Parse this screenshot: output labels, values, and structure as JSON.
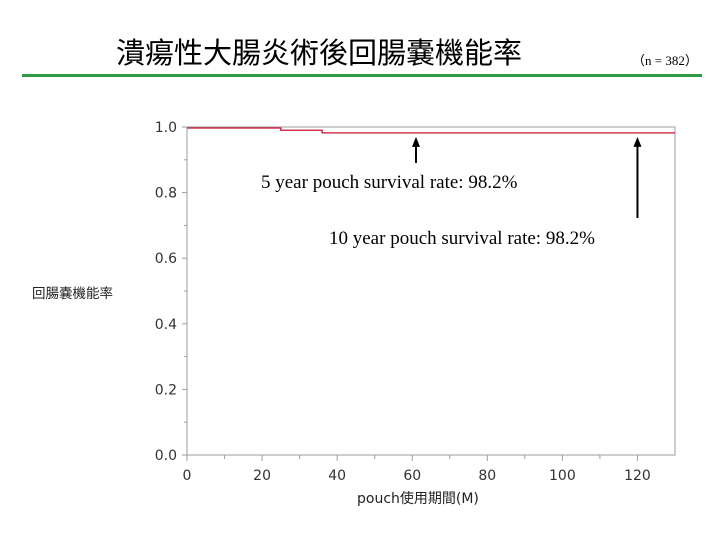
{
  "slide": {
    "title": "潰瘍性大腸炎術後回腸嚢機能率",
    "sample_size": "（n = 382）",
    "rule_color": "#2e9a45"
  },
  "annotations": {
    "five_year": "5 year pouch survival rate: 98.2%",
    "ten_year": "10 year pouch survival rate: 98.2%"
  },
  "chart_data": {
    "type": "line",
    "title": "",
    "xlabel": "pouch使用期間(M)",
    "ylabel": "回腸嚢機能率",
    "xlim": [
      0,
      130
    ],
    "ylim": [
      0.0,
      1.0
    ],
    "x_ticks": [
      0,
      20,
      40,
      60,
      80,
      100,
      120
    ],
    "y_ticks": [
      0.0,
      0.2,
      0.4,
      0.6,
      0.8,
      1.0
    ],
    "y_tick_labels": [
      "0.0",
      "0.2",
      "0.4",
      "0.6",
      "0.8",
      "1.0"
    ],
    "grid": false,
    "series": [
      {
        "color": "#c8102e",
        "step": true,
        "x": [
          0,
          25,
          25,
          36,
          36,
          130
        ],
        "y": [
          0.997,
          0.997,
          0.99,
          0.99,
          0.982,
          0.982
        ]
      }
    ],
    "arrows": [
      {
        "x": 61,
        "label": "5 year"
      },
      {
        "x": 120,
        "label": "10 year"
      }
    ]
  }
}
